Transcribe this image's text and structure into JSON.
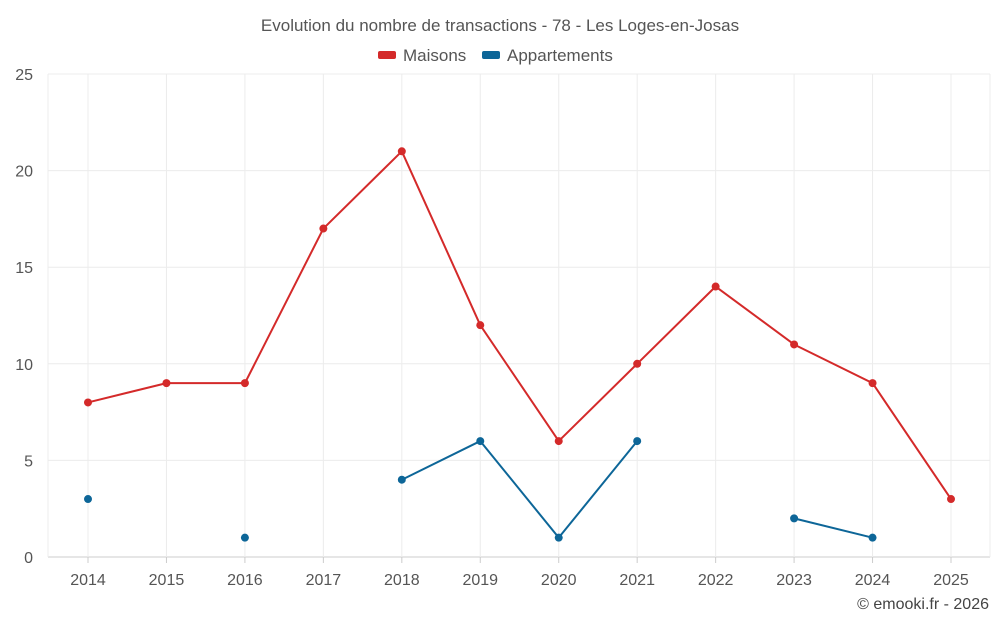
{
  "chart_data": {
    "type": "line",
    "title": "Evolution du nombre de transactions - 78 - Les Loges-en-Josas",
    "categories": [
      "2014",
      "2015",
      "2016",
      "2017",
      "2018",
      "2019",
      "2020",
      "2021",
      "2022",
      "2023",
      "2024",
      "2025"
    ],
    "ylim": [
      0,
      25
    ],
    "yticks": [
      0,
      5,
      10,
      15,
      20,
      25
    ],
    "grid": true,
    "legend_position": "top-center",
    "xlabel": "",
    "ylabel": "",
    "series": [
      {
        "name": "Maisons",
        "color": "#d42a2a",
        "values": [
          8,
          9,
          9,
          17,
          21,
          12,
          6,
          10,
          14,
          11,
          9,
          3
        ]
      },
      {
        "name": "Appartements",
        "color": "#0d6698",
        "values": [
          3,
          null,
          1,
          null,
          4,
          6,
          1,
          6,
          null,
          2,
          1,
          null
        ]
      }
    ]
  },
  "footer": "© emooki.fr - 2026"
}
